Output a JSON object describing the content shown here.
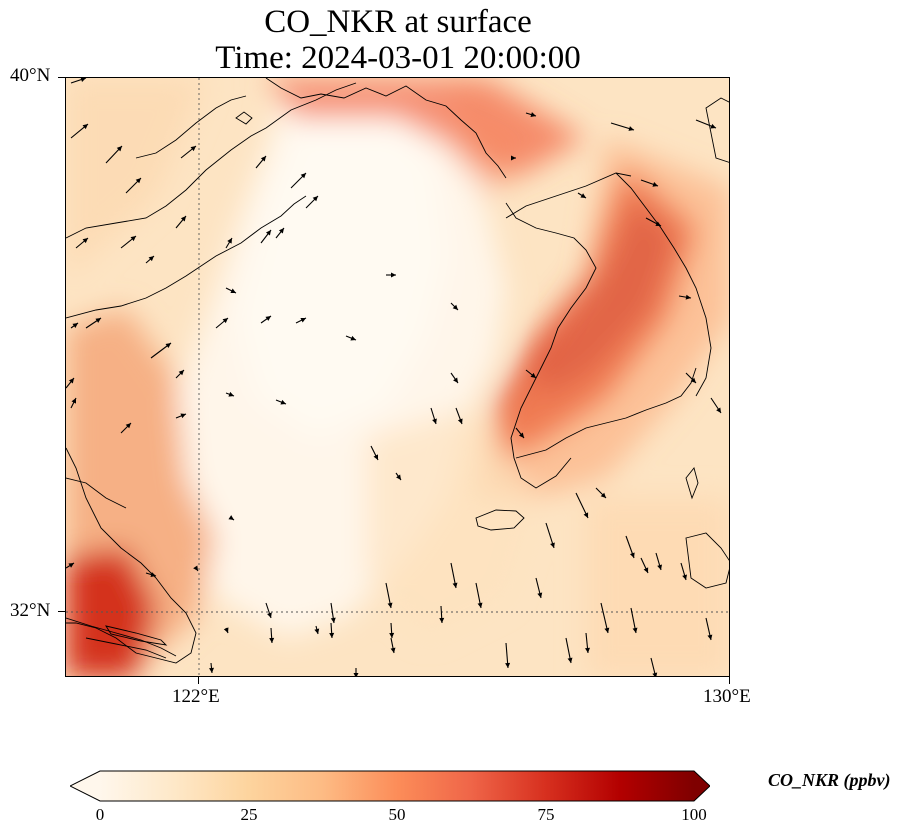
{
  "title": {
    "line1": "CO_NKR at surface",
    "line2": "Time: 2024-03-01 20:00:00"
  },
  "map": {
    "lon_range": [
      120,
      130
    ],
    "lat_range": [
      31,
      40
    ],
    "lat_ticks": [
      {
        "value": 40,
        "label": "40°N"
      },
      {
        "value": 32,
        "label": "32°N"
      }
    ],
    "lon_ticks": [
      {
        "value": 122,
        "label": "122°E"
      },
      {
        "value": 130,
        "label": "130°E"
      }
    ],
    "gridlines": {
      "lon": [
        122
      ],
      "lat": [
        32
      ],
      "style": "dotted"
    },
    "variable": "CO_NKR",
    "level": "surface",
    "overlay": "wind vectors",
    "coastline_color": "#000000"
  },
  "colorbar": {
    "label": "CO_NKR (ppbv)",
    "min": 0,
    "max": 100,
    "extend": "both",
    "colormap": "OrRd",
    "ticks": [
      {
        "value": 0,
        "label": "0"
      },
      {
        "value": 25,
        "label": "25"
      },
      {
        "value": 50,
        "label": "50"
      },
      {
        "value": 75,
        "label": "75"
      },
      {
        "value": 100,
        "label": "100"
      }
    ],
    "stops": [
      "#fff7ec",
      "#fee8c8",
      "#fdd49e",
      "#fdbb84",
      "#fc8d59",
      "#ef6548",
      "#d7301f",
      "#b30000",
      "#7f0000"
    ]
  }
}
